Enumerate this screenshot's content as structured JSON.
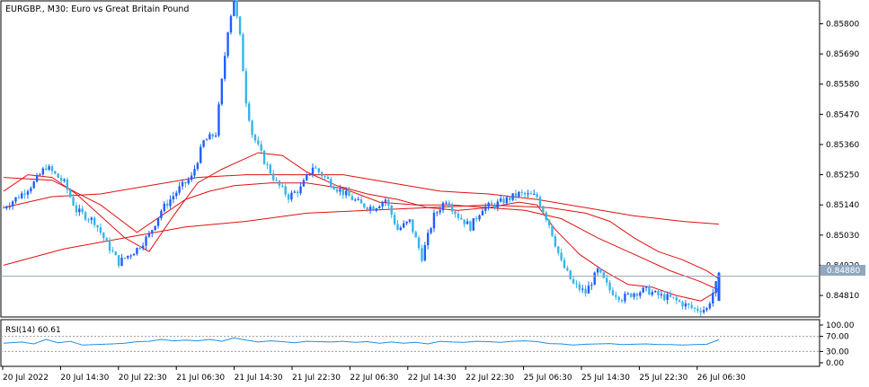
{
  "chart_data": {
    "type": "candlestick",
    "title": "EURGBP., M30:  Euro vs Great Britain Pound",
    "price_axis": {
      "ticks": [
        "0.85800",
        "0.85690",
        "0.85580",
        "0.85470",
        "0.85360",
        "0.85250",
        "0.85140",
        "0.85030",
        "0.84920",
        "0.84810"
      ],
      "range": [
        0.84735,
        0.8588
      ],
      "current_price": "0.84880"
    },
    "time_axis": {
      "labels": [
        "20 Jul 2022",
        "20 Jul 14:30",
        "20 Jul 22:30",
        "21 Jul 06:30",
        "21 Jul 14:30",
        "21 Jul 22:30",
        "22 Jul 06:30",
        "22 Jul 14:30",
        "22 Jul 22:30",
        "25 Jul 06:30",
        "25 Jul 14:30",
        "25 Jul 22:30",
        "26 Jul 06:30"
      ]
    },
    "colors": {
      "up": "#1f5fff",
      "down": "#35b5e8",
      "ma": "#e01010",
      "grid": "#c8c8c8",
      "price_line": "#8fa8c0",
      "rsi": "#1e8fe0"
    },
    "price_path": [
      [
        0,
        0.8513
      ],
      [
        3,
        0.8518
      ],
      [
        5,
        0.8522
      ],
      [
        7,
        0.8528
      ],
      [
        10,
        0.8522
      ],
      [
        12,
        0.8512
      ],
      [
        15,
        0.8508
      ],
      [
        17,
        0.85
      ],
      [
        19,
        0.8493
      ],
      [
        22,
        0.8498
      ],
      [
        24,
        0.8503
      ],
      [
        26,
        0.8512
      ],
      [
        29,
        0.852
      ],
      [
        31,
        0.8524
      ],
      [
        33,
        0.8537
      ],
      [
        35,
        0.854
      ],
      [
        37,
        0.8578
      ],
      [
        38,
        0.8589
      ],
      [
        39,
        0.8575
      ],
      [
        40,
        0.8552
      ],
      [
        41,
        0.854
      ],
      [
        43,
        0.853
      ],
      [
        45,
        0.8522
      ],
      [
        47,
        0.8517
      ],
      [
        49,
        0.852
      ],
      [
        51,
        0.8528
      ],
      [
        53,
        0.8524
      ],
      [
        55,
        0.852
      ],
      [
        57,
        0.8517
      ],
      [
        59,
        0.8514
      ],
      [
        61,
        0.8513
      ],
      [
        63,
        0.8516
      ],
      [
        65,
        0.8505
      ],
      [
        67,
        0.8508
      ],
      [
        69,
        0.8495
      ],
      [
        71,
        0.851
      ],
      [
        73,
        0.8516
      ],
      [
        75,
        0.851
      ],
      [
        77,
        0.8506
      ],
      [
        79,
        0.8513
      ],
      [
        81,
        0.8514
      ],
      [
        83,
        0.8516
      ],
      [
        85,
        0.8518
      ],
      [
        88,
        0.8517
      ],
      [
        90,
        0.8507
      ],
      [
        92,
        0.8493
      ],
      [
        94,
        0.8485
      ],
      [
        96,
        0.8482
      ],
      [
        98,
        0.849
      ],
      [
        100,
        0.8483
      ],
      [
        102,
        0.848
      ],
      [
        104,
        0.8482
      ],
      [
        106,
        0.8483
      ],
      [
        108,
        0.8481
      ],
      [
        110,
        0.848
      ],
      [
        112,
        0.8478
      ],
      [
        114,
        0.8476
      ],
      [
        116,
        0.8476
      ],
      [
        118,
        0.8488
      ]
    ],
    "ma_series": [
      {
        "period_hint": "fast",
        "points": [
          [
            0,
            0.8519
          ],
          [
            4,
            0.8525
          ],
          [
            8,
            0.8524
          ],
          [
            12,
            0.8518
          ],
          [
            16,
            0.851
          ],
          [
            20,
            0.8502
          ],
          [
            24,
            0.8497
          ],
          [
            28,
            0.851
          ],
          [
            32,
            0.8522
          ],
          [
            36,
            0.8527
          ],
          [
            40,
            0.8531
          ],
          [
            42,
            0.8533
          ],
          [
            46,
            0.8532
          ],
          [
            50,
            0.8526
          ],
          [
            55,
            0.8521
          ],
          [
            60,
            0.8518
          ],
          [
            65,
            0.8516
          ],
          [
            70,
            0.8513
          ],
          [
            75,
            0.8512
          ],
          [
            80,
            0.8513
          ],
          [
            85,
            0.8515
          ],
          [
            88,
            0.8514
          ],
          [
            91,
            0.8505
          ],
          [
            95,
            0.8496
          ],
          [
            99,
            0.849
          ],
          [
            103,
            0.8485
          ],
          [
            107,
            0.8484
          ],
          [
            111,
            0.8481
          ],
          [
            115,
            0.8479
          ],
          [
            118,
            0.8483
          ]
        ]
      },
      {
        "period_hint": "medium",
        "points": [
          [
            0,
            0.8524
          ],
          [
            8,
            0.8523
          ],
          [
            16,
            0.8514
          ],
          [
            22,
            0.8504
          ],
          [
            26,
            0.851
          ],
          [
            30,
            0.8516
          ],
          [
            34,
            0.8519
          ],
          [
            38,
            0.8521
          ],
          [
            44,
            0.8522
          ],
          [
            50,
            0.8522
          ],
          [
            56,
            0.852
          ],
          [
            62,
            0.8515
          ],
          [
            68,
            0.8514
          ],
          [
            74,
            0.8514
          ],
          [
            80,
            0.8513
          ],
          [
            86,
            0.8512
          ],
          [
            92,
            0.8509
          ],
          [
            98,
            0.8502
          ],
          [
            104,
            0.8496
          ],
          [
            110,
            0.849
          ],
          [
            115,
            0.8486
          ],
          [
            118,
            0.8483
          ]
        ]
      },
      {
        "period_hint": "slow-upper",
        "points": [
          [
            0,
            0.8513
          ],
          [
            8,
            0.8517
          ],
          [
            16,
            0.8518
          ],
          [
            24,
            0.8521
          ],
          [
            32,
            0.8524
          ],
          [
            40,
            0.8525
          ],
          [
            48,
            0.8525
          ],
          [
            56,
            0.8525
          ],
          [
            64,
            0.8522
          ],
          [
            72,
            0.8519
          ],
          [
            80,
            0.8518
          ],
          [
            88,
            0.8516
          ],
          [
            96,
            0.8513
          ],
          [
            104,
            0.851
          ],
          [
            112,
            0.8508
          ],
          [
            118,
            0.8507
          ]
        ]
      },
      {
        "period_hint": "slow-lower",
        "points": [
          [
            0,
            0.8492
          ],
          [
            10,
            0.8498
          ],
          [
            20,
            0.8502
          ],
          [
            30,
            0.8506
          ],
          [
            40,
            0.8508
          ],
          [
            50,
            0.8511
          ],
          [
            60,
            0.8512
          ],
          [
            70,
            0.8513
          ],
          [
            80,
            0.8514
          ],
          [
            90,
            0.8513
          ],
          [
            96,
            0.8511
          ],
          [
            100,
            0.8508
          ],
          [
            104,
            0.8502
          ],
          [
            108,
            0.8497
          ],
          [
            112,
            0.8494
          ],
          [
            116,
            0.849
          ],
          [
            118,
            0.8487
          ]
        ]
      }
    ],
    "indicator": {
      "label": "RSI(14) 60.61",
      "ticks": [
        "100.00",
        "70.00",
        "30.00",
        "0.00"
      ],
      "levels": [
        70,
        30
      ],
      "path": [
        [
          0,
          52
        ],
        [
          3,
          55
        ],
        [
          5,
          50
        ],
        [
          7,
          62
        ],
        [
          9,
          53
        ],
        [
          11,
          57
        ],
        [
          13,
          47
        ],
        [
          15,
          48
        ],
        [
          18,
          50
        ],
        [
          20,
          52
        ],
        [
          22,
          56
        ],
        [
          24,
          57
        ],
        [
          26,
          62
        ],
        [
          28,
          58
        ],
        [
          30,
          60
        ],
        [
          32,
          58
        ],
        [
          34,
          62
        ],
        [
          36,
          57
        ],
        [
          38,
          66
        ],
        [
          40,
          60
        ],
        [
          42,
          55
        ],
        [
          44,
          58
        ],
        [
          46,
          56
        ],
        [
          48,
          53
        ],
        [
          50,
          57
        ],
        [
          52,
          56
        ],
        [
          54,
          55
        ],
        [
          56,
          57
        ],
        [
          58,
          54
        ],
        [
          60,
          56
        ],
        [
          62,
          52
        ],
        [
          64,
          55
        ],
        [
          66,
          52
        ],
        [
          68,
          54
        ],
        [
          70,
          50
        ],
        [
          72,
          57
        ],
        [
          74,
          55
        ],
        [
          76,
          54
        ],
        [
          78,
          57
        ],
        [
          80,
          56
        ],
        [
          82,
          54
        ],
        [
          84,
          57
        ],
        [
          86,
          58
        ],
        [
          88,
          56
        ],
        [
          90,
          51
        ],
        [
          92,
          50
        ],
        [
          94,
          47
        ],
        [
          96,
          49
        ],
        [
          98,
          50
        ],
        [
          100,
          51
        ],
        [
          102,
          48
        ],
        [
          104,
          49
        ],
        [
          106,
          50
        ],
        [
          108,
          48
        ],
        [
          110,
          48
        ],
        [
          112,
          47
        ],
        [
          114,
          48
        ],
        [
          116,
          49
        ],
        [
          118,
          61
        ]
      ]
    }
  }
}
